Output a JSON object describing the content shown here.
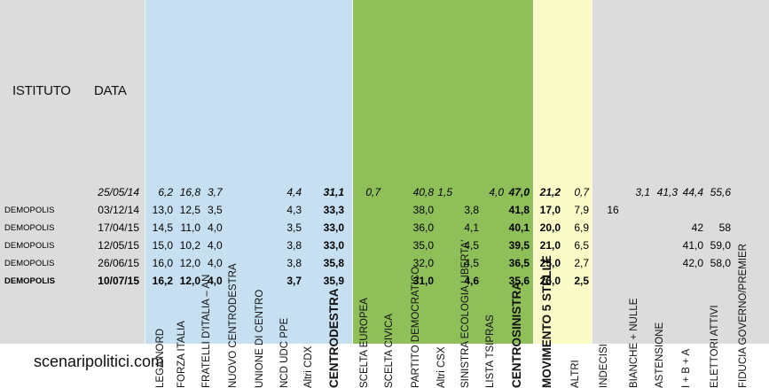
{
  "headers": {
    "istituto": "ISTITUTO",
    "data": "DATA",
    "lega_nord": "LEGA NORD",
    "forza_italia": "FORZA ITALIA",
    "fdi_an": "FRATELLI D'ITALIA – AN",
    "ncd": "NUOVO  CENTRODESTRA",
    "udc": "UNIONE DI CENTRO",
    "ncd_udc_ppe": "NCD UDC PPE",
    "altri_cdx": "Altri CDX",
    "centrodestra": "CENTRODESTRA",
    "scelta_europea": "SCELTA EUROPEA",
    "scelta_civica": "SCELTA CIVICA",
    "pd": "PARTITO DEMOCRATICO",
    "altri_csx": "Altri CSX",
    "sel": "SINISTRA ECOLOGIA LIBERTA'",
    "tsipras": "LISTA TSIPRAS",
    "centrosinistra": "CENTROSINISTRA",
    "m5s": "MOVIMENTO 5 STELLE",
    "altri": "ALTRI",
    "indecisi": "INDECISI",
    "bianche_nulle": "BIANCHE + NULLE",
    "astensione": "ASTENSIONE",
    "ibA": "I + B + A",
    "elettori_attivi": "ELETTORI ATTIVI",
    "fiducia": "FIDUCIA GOVERNO/PREMIER"
  },
  "rows": [
    {
      "istituto": "",
      "data": "25/05/14",
      "lega_nord": "6,2",
      "forza_italia": "16,8",
      "fdi_an": "3,7",
      "ncd_udc_ppe": "4,4",
      "centrodestra": "31,1",
      "scelta_europea": "0,7",
      "pd": "40,8",
      "altri_csx": "1,5",
      "tsipras": "4,0",
      "centrosinistra": "47,0",
      "m5s": "21,2",
      "altri": "0,7",
      "bianche_nulle": "3,1",
      "astensione": "41,3",
      "ibA": "44,4",
      "elettori_attivi": "55,6"
    },
    {
      "istituto": "DEMOPOLIS",
      "data": "03/12/14",
      "lega_nord": "13,0",
      "forza_italia": "12,5",
      "fdi_an": "3,5",
      "ncd_udc_ppe": "4,3",
      "centrodestra": "33,3",
      "pd": "38,0",
      "sel": "3,8",
      "centrosinistra": "41,8",
      "m5s": "17,0",
      "altri": "7,9",
      "indecisi": "16"
    },
    {
      "istituto": "DEMOPOLIS",
      "data": "17/04/15",
      "lega_nord": "14,5",
      "forza_italia": "11,0",
      "fdi_an": "4,0",
      "ncd_udc_ppe": "3,5",
      "centrodestra": "33,0",
      "pd": "36,0",
      "sel": "4,1",
      "centrosinistra": "40,1",
      "m5s": "20,0",
      "altri": "6,9",
      "ibA": "42",
      "elettori_attivi": "58"
    },
    {
      "istituto": "DEMOPOLIS",
      "data": "12/05/15",
      "lega_nord": "15,0",
      "forza_italia": "10,2",
      "fdi_an": "4,0",
      "ncd_udc_ppe": "3,8",
      "centrodestra": "33,0",
      "pd": "35,0",
      "sel": "4,5",
      "centrosinistra": "39,5",
      "m5s": "21,0",
      "altri": "6,5",
      "ibA": "41,0",
      "elettori_attivi": "59,0"
    },
    {
      "istituto": "DEMOPOLIS",
      "data": "26/06/15",
      "lega_nord": "16,0",
      "forza_italia": "12,0",
      "fdi_an": "4,0",
      "ncd_udc_ppe": "3,8",
      "centrodestra": "35,8",
      "pd": "32,0",
      "sel": "4,5",
      "centrosinistra": "36,5",
      "m5s": "25,0",
      "altri": "2,7",
      "ibA": "42,0",
      "elettori_attivi": "58,0"
    },
    {
      "istituto": "DEMOPOLIS",
      "data": "10/07/15",
      "lega_nord": "16,2",
      "forza_italia": "12,0",
      "fdi_an": "4,0",
      "ncd_udc_ppe": "3,7",
      "centrodestra": "35,9",
      "pd": "31,0",
      "sel": "4,6",
      "centrosinistra": "35,6",
      "m5s": "26,0",
      "altri": "2,5"
    }
  ],
  "footer": "scenaripolitici.com",
  "colors": {
    "band_gray": "#dcdcdc",
    "band_cdx": "#c6e0f1",
    "band_csx": "#8fbf58",
    "band_m5s": "#fbfbc8"
  }
}
